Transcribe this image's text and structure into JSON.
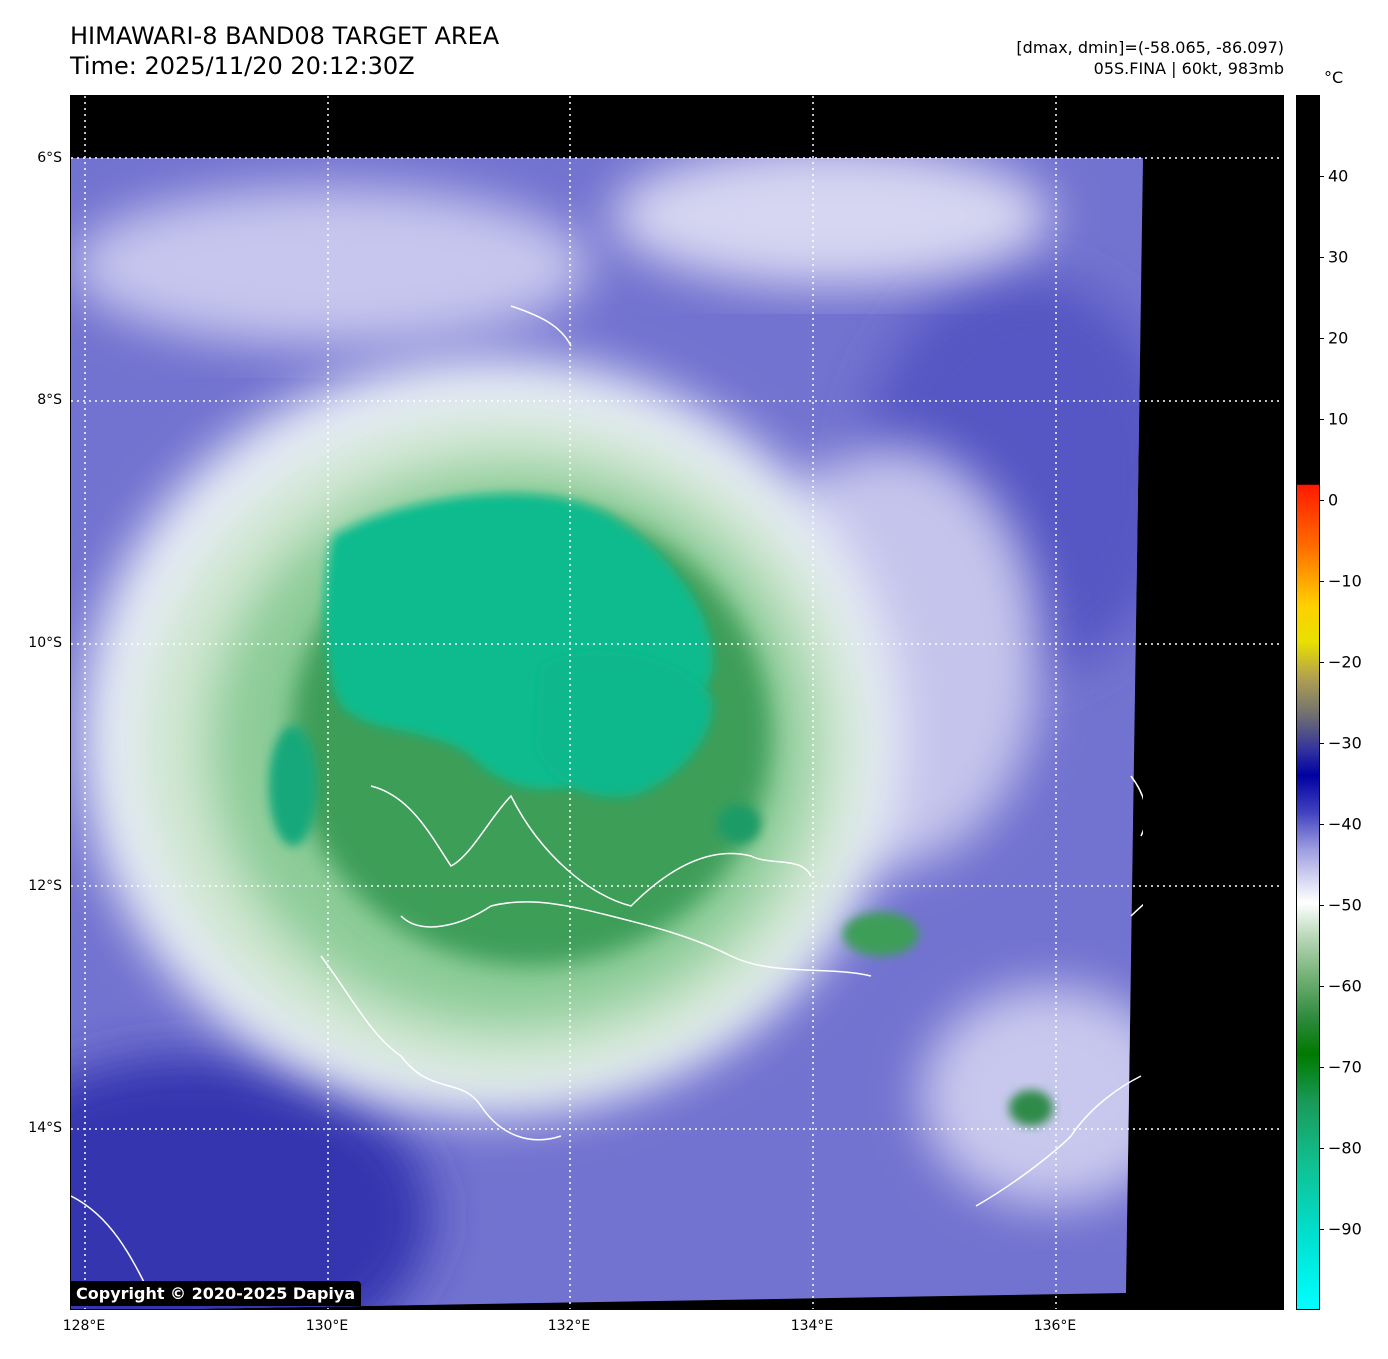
{
  "header": {
    "title_line1": "HIMAWARI-8 BAND08 TARGET AREA",
    "title_line2": "Time: 2025/11/20 20:12:30Z",
    "range_text": "[dmax, dmin]=(-58.065, -86.097)",
    "storm_text": "05S.FINA | 60kt, 983mb"
  },
  "map": {
    "lat_labels": [
      "6°S",
      "8°S",
      "10°S",
      "12°S",
      "14°S"
    ],
    "lon_labels": [
      "128°E",
      "130°E",
      "132°E",
      "134°E",
      "136°E"
    ],
    "copyright": "Copyright © 2020-2025 Dapiya"
  },
  "colorbar": {
    "unit": "°C",
    "ticks": [
      "40",
      "30",
      "20",
      "10",
      "0",
      "−10",
      "−20",
      "−30",
      "−40",
      "−50",
      "−60",
      "−70",
      "−80",
      "−90"
    ],
    "range": [
      -100,
      50
    ]
  },
  "colors": {
    "cold_top": "#06c79a",
    "deep_green": "#1f8a3a",
    "light_green": "#a7d4a7",
    "white": "#ffffff",
    "lavender": "#a7a7e6",
    "blue": "#3a3ab8",
    "no_data": "#000000",
    "coastline": "#ffffff"
  }
}
